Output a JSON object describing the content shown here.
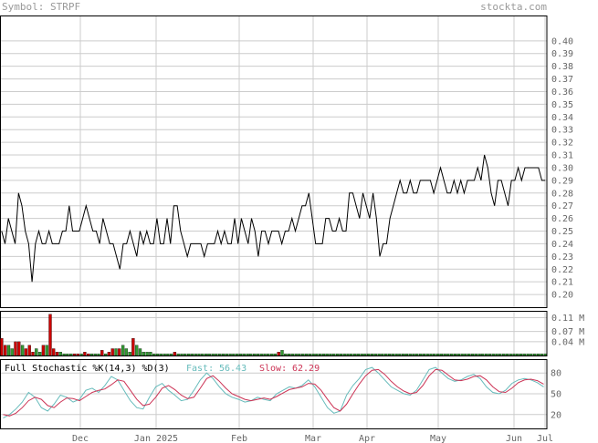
{
  "header": {
    "symbol_label": "Symbol: STRPF",
    "site": "stockta.com"
  },
  "colors": {
    "grid": "#cccccc",
    "frame": "#000000",
    "up": "#339933",
    "down": "#cc0000",
    "fast": "#66bbbb",
    "slow": "#cc3355",
    "price": "#000000"
  },
  "chart_data": [
    {
      "type": "line",
      "title": "",
      "series": [
        {
          "name": "",
          "values": [
            0.25,
            0.24,
            0.26,
            0.25,
            0.24,
            0.28,
            0.27,
            0.25,
            0.24,
            0.21,
            0.24,
            0.25,
            0.24,
            0.24,
            0.25,
            0.24,
            0.24,
            0.24,
            0.25,
            0.25,
            0.27,
            0.25,
            0.25,
            0.25,
            0.26,
            0.27,
            0.26,
            0.25,
            0.25,
            0.24,
            0.26,
            0.25,
            0.24,
            0.24,
            0.23,
            0.22,
            0.24,
            0.24,
            0.25,
            0.24,
            0.23,
            0.25,
            0.24,
            0.25,
            0.24,
            0.24,
            0.26,
            0.24,
            0.24,
            0.26,
            0.24,
            0.27,
            0.27,
            0.25,
            0.24,
            0.23,
            0.24,
            0.24,
            0.24,
            0.24,
            0.23,
            0.24,
            0.24,
            0.24,
            0.25,
            0.24,
            0.25,
            0.24,
            0.24,
            0.26,
            0.24,
            0.26,
            0.25,
            0.24,
            0.26,
            0.25,
            0.23,
            0.25,
            0.25,
            0.24,
            0.25,
            0.25,
            0.25,
            0.24,
            0.25,
            0.25,
            0.26,
            0.25,
            0.26,
            0.27,
            0.27,
            0.28,
            0.26,
            0.24,
            0.24,
            0.24,
            0.26,
            0.26,
            0.25,
            0.25,
            0.26,
            0.25,
            0.25,
            0.28,
            0.28,
            0.27,
            0.26,
            0.28,
            0.27,
            0.26,
            0.28,
            0.26,
            0.23,
            0.24,
            0.24,
            0.26,
            0.27,
            0.28,
            0.29,
            0.28,
            0.28,
            0.29,
            0.28,
            0.28,
            0.29,
            0.29,
            0.29,
            0.29,
            0.28,
            0.29,
            0.3,
            0.29,
            0.28,
            0.28,
            0.29,
            0.28,
            0.29,
            0.28,
            0.29,
            0.29,
            0.29,
            0.3,
            0.29,
            0.31,
            0.3,
            0.28,
            0.27,
            0.29,
            0.29,
            0.28,
            0.27,
            0.29,
            0.29,
            0.3,
            0.29,
            0.3,
            0.3,
            0.3,
            0.3,
            0.3,
            0.29,
            0.29
          ]
        }
      ],
      "ylim": [
        0.19,
        0.42
      ],
      "y_ticks": [
        "0.40",
        "0.39",
        "0.38",
        "0.37",
        "0.36",
        "0.35",
        "0.34",
        "0.33",
        "0.32",
        "0.31",
        "0.30",
        "0.29",
        "0.28",
        "0.27",
        "0.26",
        "0.25",
        "0.24",
        "0.23",
        "0.22",
        "0.21",
        "0.20"
      ],
      "grid": true
    },
    {
      "type": "bar",
      "title": "",
      "values": [
        0.05,
        0.03,
        0.03,
        0.02,
        0.04,
        0.04,
        0.03,
        0.02,
        0.03,
        0.01,
        0.02,
        0.01,
        0.03,
        0.03,
        0.12,
        0.02,
        0.01,
        0.01,
        0.005,
        0.005,
        0.005,
        0.005,
        0.005,
        0.005,
        0.01,
        0.005,
        0.005,
        0.005,
        0.005,
        0.015,
        0.005,
        0.01,
        0.02,
        0.02,
        0.02,
        0.03,
        0.02,
        0.01,
        0.05,
        0.03,
        0.02,
        0.01,
        0.01,
        0.01,
        0.005,
        0.005,
        0.005,
        0.005,
        0.005,
        0.005,
        0.01,
        0.005,
        0.005,
        0.005,
        0.005,
        0.005,
        0.005,
        0.005,
        0.005,
        0.005,
        0.005,
        0.005,
        0.005,
        0.005,
        0.005,
        0.005,
        0.005,
        0.005,
        0.005,
        0.005,
        0.005,
        0.005,
        0.005,
        0.005,
        0.005,
        0.005,
        0.005,
        0.005,
        0.005,
        0.005,
        0.01,
        0.015,
        0.005,
        0.005,
        0.005,
        0.005,
        0.005,
        0.005,
        0.005,
        0.005,
        0.005,
        0.005,
        0.005,
        0.005,
        0.005,
        0.005,
        0.005,
        0.005,
        0.005,
        0.005,
        0.005,
        0.005,
        0.005,
        0.005,
        0.005,
        0.005,
        0.005,
        0.005,
        0.005,
        0.005,
        0.005,
        0.005,
        0.005,
        0.005,
        0.005,
        0.005,
        0.005,
        0.005,
        0.005,
        0.005,
        0.005,
        0.005,
        0.005,
        0.005,
        0.005,
        0.005,
        0.005,
        0.005,
        0.005,
        0.005,
        0.005,
        0.005,
        0.005,
        0.005,
        0.005,
        0.005,
        0.005,
        0.005,
        0.005,
        0.005,
        0.005,
        0.005,
        0.005,
        0.005,
        0.005,
        0.005,
        0.005,
        0.005,
        0.005,
        0.005,
        0.005,
        0.005,
        0.005,
        0.005,
        0.005,
        0.005,
        0.005,
        0.005
      ],
      "colors": [
        "down",
        "down",
        "up",
        "up",
        "down",
        "down",
        "up",
        "down",
        "down",
        "down",
        "up",
        "up",
        "down",
        "up",
        "down",
        "down",
        "down",
        "up",
        "up",
        "up",
        "up",
        "down",
        "down",
        "up",
        "down",
        "down",
        "up",
        "up",
        "up",
        "down",
        "up",
        "down",
        "down",
        "up",
        "down",
        "up",
        "up",
        "up",
        "down",
        "up",
        "up",
        "up",
        "up",
        "up",
        "up",
        "up",
        "up",
        "up",
        "up",
        "up",
        "down",
        "up",
        "up",
        "up",
        "up",
        "up",
        "up",
        "up",
        "up",
        "up",
        "up",
        "up",
        "up",
        "up",
        "up",
        "up",
        "up",
        "up",
        "up",
        "up",
        "up",
        "up",
        "up",
        "up",
        "up",
        "up",
        "up",
        "up",
        "up",
        "up",
        "down",
        "up",
        "up",
        "up",
        "up",
        "up",
        "up",
        "up",
        "up",
        "up",
        "up",
        "up",
        "up",
        "up",
        "up",
        "up",
        "up",
        "up",
        "up",
        "up",
        "up",
        "up",
        "up",
        "up",
        "up",
        "up",
        "up",
        "up",
        "up",
        "up",
        "up",
        "up",
        "up",
        "up",
        "up",
        "up",
        "up",
        "up",
        "up",
        "up",
        "up",
        "up",
        "up",
        "up",
        "up",
        "up",
        "up",
        "up",
        "up",
        "up",
        "up",
        "up",
        "up",
        "up",
        "up",
        "up",
        "up",
        "up",
        "up",
        "up",
        "up",
        "up",
        "up",
        "up",
        "up",
        "up",
        "up",
        "up",
        "up",
        "up",
        "up",
        "up",
        "up",
        "up",
        "up",
        "up",
        "up",
        "up",
        "up",
        "up",
        "up"
      ],
      "ylim": [
        0,
        0.13
      ],
      "y_ticks": [
        "0.11 M",
        "0.07 M",
        "0.04 M"
      ],
      "grid": true
    },
    {
      "type": "line",
      "title": "Full Stochastic %K(14,3) %D(3)",
      "fast_label": "Fast:",
      "fast_value": "56.43",
      "slow_label": "Slow:",
      "slow_value": "62.29",
      "series": [
        {
          "name": "Fast",
          "values": [
            15,
            20,
            28,
            38,
            52,
            45,
            30,
            25,
            35,
            48,
            45,
            38,
            42,
            55,
            58,
            52,
            62,
            75,
            70,
            55,
            40,
            30,
            28,
            45,
            60,
            65,
            55,
            48,
            40,
            42,
            55,
            70,
            80,
            72,
            60,
            50,
            45,
            42,
            38,
            40,
            45,
            42,
            40,
            50,
            55,
            60,
            58,
            62,
            70,
            60,
            45,
            30,
            22,
            25,
            48,
            62,
            72,
            85,
            88,
            80,
            70,
            60,
            55,
            50,
            48,
            55,
            70,
            85,
            88,
            80,
            72,
            68,
            70,
            75,
            78,
            72,
            60,
            52,
            50,
            55,
            65,
            70,
            72,
            70,
            66,
            60
          ]
        },
        {
          "name": "Slow",
          "values": [
            20,
            18,
            22,
            30,
            40,
            45,
            42,
            33,
            30,
            38,
            44,
            43,
            40,
            46,
            52,
            55,
            57,
            63,
            70,
            68,
            55,
            42,
            33,
            35,
            45,
            58,
            62,
            56,
            48,
            43,
            45,
            58,
            72,
            76,
            68,
            58,
            50,
            46,
            42,
            40,
            42,
            44,
            42,
            46,
            51,
            56,
            58,
            60,
            65,
            64,
            55,
            42,
            30,
            25,
            35,
            50,
            64,
            76,
            84,
            85,
            78,
            68,
            60,
            54,
            50,
            52,
            62,
            76,
            85,
            84,
            77,
            70,
            69,
            71,
            75,
            76,
            70,
            60,
            53,
            52,
            58,
            66,
            70,
            71,
            69,
            64
          ]
        }
      ],
      "ylim": [
        0,
        100
      ],
      "y_ticks": [
        "80",
        "50",
        "20"
      ],
      "grid": true
    }
  ],
  "x_axis": {
    "labels": [
      "Dec",
      "Jan 2025",
      "Feb",
      "Mar",
      "Apr",
      "May",
      "Jun",
      "Jul"
    ]
  }
}
